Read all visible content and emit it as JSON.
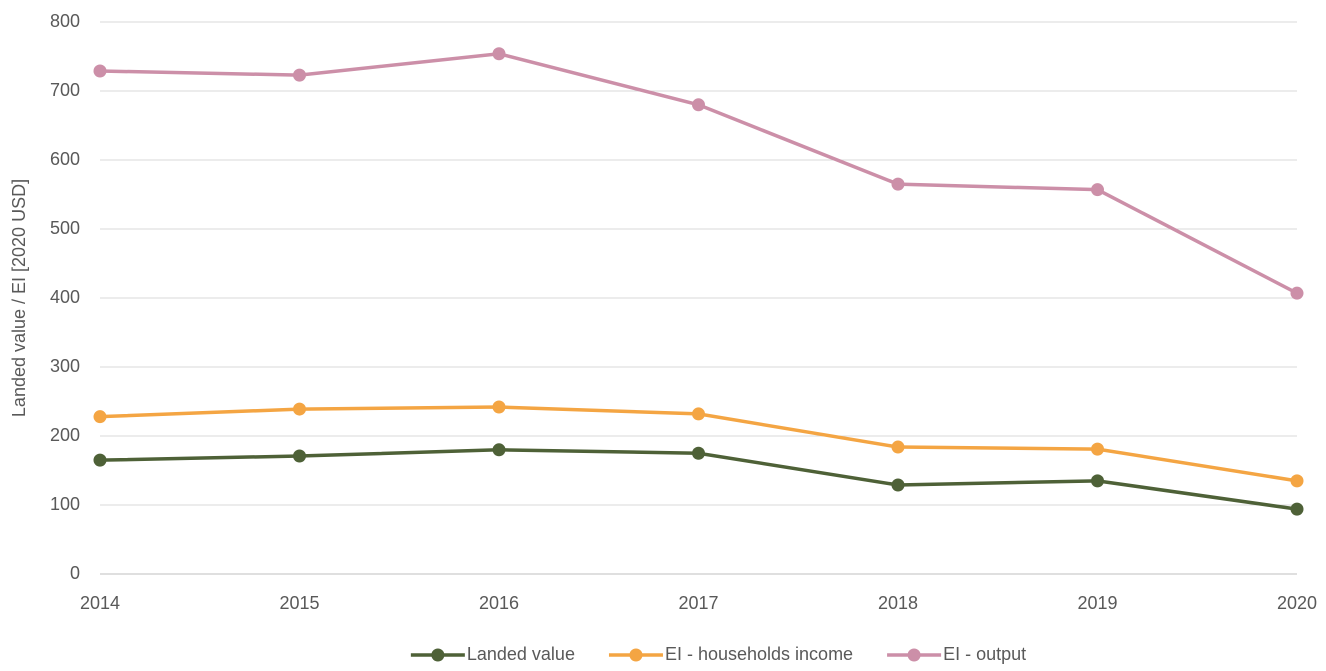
{
  "chart_data": {
    "type": "line",
    "y_label": "Landed value / EI [2020 USD]",
    "x": [
      2014,
      2015,
      2016,
      2017,
      2018,
      2019,
      2020
    ],
    "xlim": [
      2014,
      2020
    ],
    "xticks": [
      2014,
      2015,
      2016,
      2017,
      2018,
      2019,
      2020
    ],
    "ylim": [
      0,
      800
    ],
    "yticks": [
      0,
      100,
      200,
      300,
      400,
      500,
      600,
      700,
      800
    ],
    "grid": true,
    "legend": "bottom",
    "series": [
      {
        "name": "Landed value",
        "color": "#4e6137",
        "values": [
          165,
          171,
          180,
          175,
          129,
          135,
          94
        ]
      },
      {
        "name": "EI - households income",
        "color": "#f4a543",
        "values": [
          228,
          239,
          242,
          232,
          184,
          181,
          135
        ]
      },
      {
        "name": "EI - output",
        "color": "#cc8fa8",
        "values": [
          729,
          723,
          754,
          680,
          565,
          557,
          407
        ]
      }
    ]
  }
}
